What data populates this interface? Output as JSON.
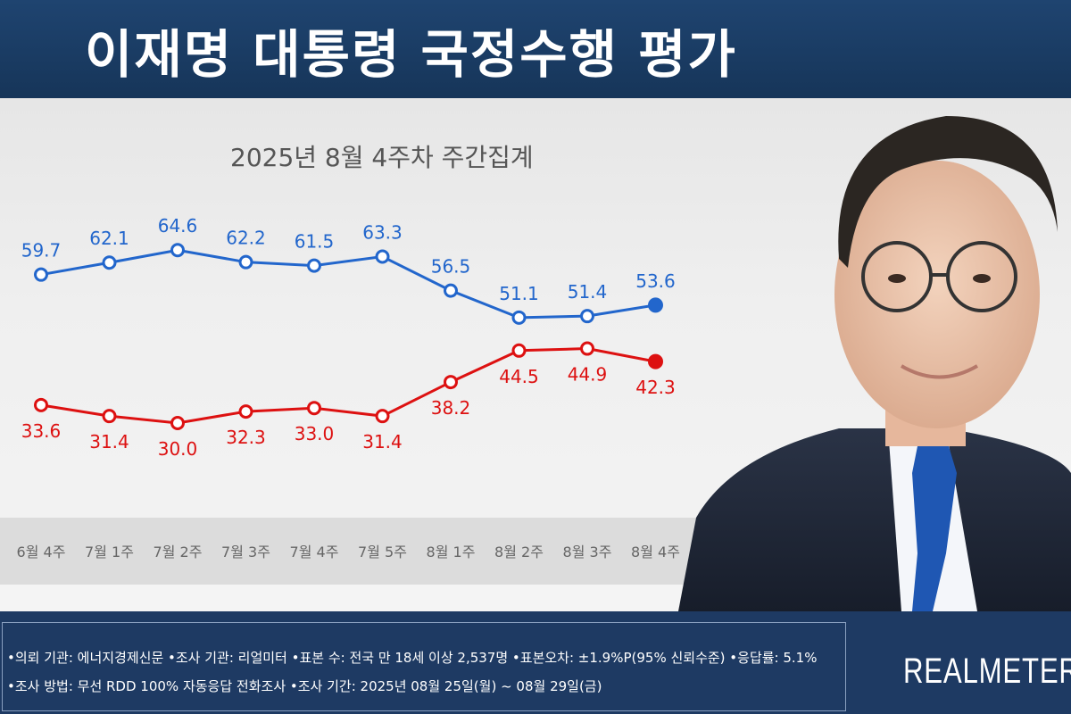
{
  "header": {
    "title": "이재명 대통령 국정수행 평가",
    "subtitle": "2025년 8월 4주차 주간집계"
  },
  "colors": {
    "positive": "#2266cc",
    "negative": "#dd1111",
    "header_bg": "#1f4470",
    "footer_bg": "#1e3a63"
  },
  "chart_data": {
    "type": "line",
    "title": "2025년 8월 4주차 주간집계",
    "categories": [
      "6월 4주",
      "7월 1주",
      "7월 2주",
      "7월 3주",
      "7월 4주",
      "7월 5주",
      "8월 1주",
      "8월 2주",
      "8월 3주",
      "8월 4주"
    ],
    "series": [
      {
        "color": "#2266cc",
        "values": [
          59.7,
          62.1,
          64.6,
          62.2,
          61.5,
          63.3,
          56.5,
          51.1,
          51.4,
          53.6
        ],
        "labels": [
          "59.7",
          "62.1",
          "64.6",
          "62.2",
          "61.5",
          "63.3",
          "56.5",
          "51.1",
          "51.4",
          "53.6"
        ],
        "label_position": "above"
      },
      {
        "color": "#dd1111",
        "values": [
          33.6,
          31.4,
          30.0,
          32.3,
          33.0,
          31.4,
          38.2,
          44.5,
          44.9,
          42.3
        ],
        "labels": [
          "33.6",
          "31.4",
          "30.0",
          "32.3",
          "33.0",
          "31.4",
          "38.2",
          "44.5",
          "44.9",
          "42.3"
        ],
        "label_position": "below"
      }
    ],
    "ylim": [
      20,
      75
    ],
    "grid": false,
    "legend": "none",
    "last_point_filled": true
  },
  "footer": {
    "line1": "•의뢰 기관: 에너지경제신문 •조사 기관: 리얼미터 •표본 수: 전국 만 18세 이상 2,537명 •표본오차: ±1.9%P(95% 신뢰수준) •응답률: 5.1%",
    "line2": "•조사 방법: 무선 RDD 100% 자동응답 전화조사 •조사 기간: 2025년 08월 25일(월) ~ 08월 29일(금)",
    "logo": "REALMETER"
  }
}
